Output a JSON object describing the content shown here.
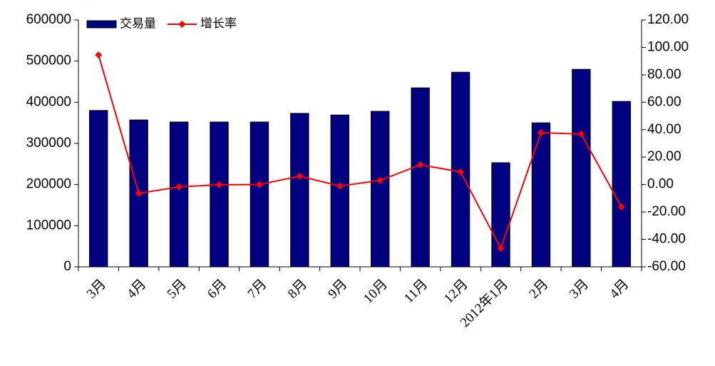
{
  "chart_data": {
    "type": "bar-line",
    "categories": [
      "3月",
      "4月",
      "5月",
      "6月",
      "7月",
      "8月",
      "9月",
      "10月",
      "11月",
      "12月",
      "2012年1月",
      "2月",
      "3月",
      "4月"
    ],
    "series": [
      {
        "name": "交易量",
        "type": "bar",
        "color": "#000080",
        "values": [
          380000,
          357000,
          352000,
          352000,
          352000,
          373000,
          369000,
          378000,
          435000,
          473000,
          253000,
          350000,
          480000,
          402000
        ]
      },
      {
        "name": "增长率",
        "type": "line",
        "axis": "y2",
        "color": "#ff0000",
        "values": [
          94.5,
          -6.4,
          -1.7,
          -0.2,
          0,
          6.1,
          -1.1,
          3.0,
          14.4,
          9.2,
          -46.5,
          37.8,
          36.8,
          -16.3
        ]
      }
    ],
    "ylim": [
      0,
      600000
    ],
    "yticks": [
      0,
      100000,
      200000,
      300000,
      400000,
      500000,
      600000
    ],
    "y2lim": [
      -60,
      120
    ],
    "y2ticks": [
      {
        "value": -60,
        "label": "-60.00"
      },
      {
        "value": -40,
        "label": "-40.00"
      },
      {
        "value": -20,
        "label": "-20.00"
      },
      {
        "value": 0,
        "label": "0.00"
      },
      {
        "value": 20,
        "label": "20.00"
      },
      {
        "value": 40,
        "label": "40.00"
      },
      {
        "value": 60,
        "label": "60.00"
      },
      {
        "value": 80,
        "label": "80.00"
      },
      {
        "value": 100,
        "label": "100.00"
      },
      {
        "value": 120,
        "label": "120.00"
      }
    ],
    "legend": "top-left"
  }
}
